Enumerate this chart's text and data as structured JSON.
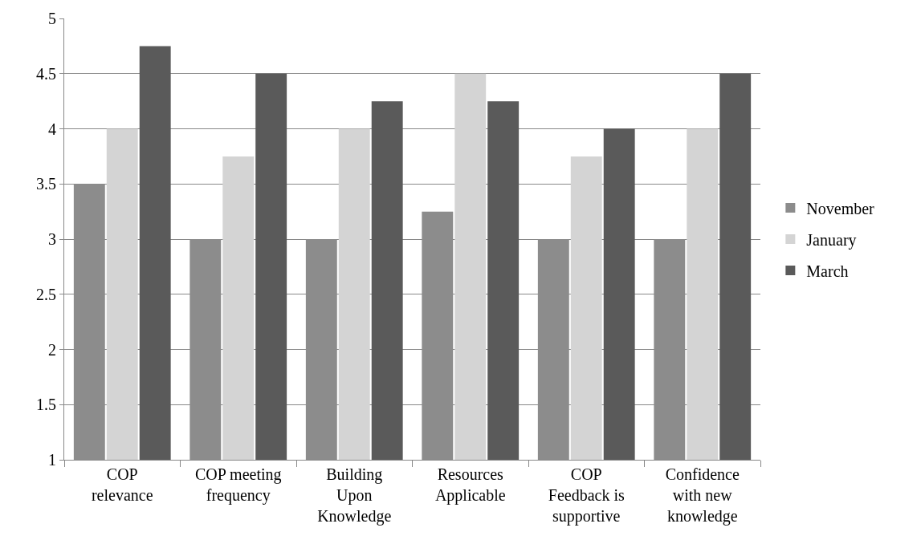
{
  "chart_data": {
    "type": "bar",
    "categories": [
      "COP relevance",
      "COP meeting frequency",
      "Building Upon Knowledge",
      "Resources Applicable",
      "COP Feedback is supportive",
      "Confidence with new knowledge"
    ],
    "series": [
      {
        "name": "November",
        "color": "#8c8c8c",
        "values": [
          3.5,
          3,
          3,
          3.25,
          3,
          3
        ]
      },
      {
        "name": "January",
        "color": "#d4d4d4",
        "values": [
          4,
          3.75,
          4,
          4.5,
          3.75,
          4
        ]
      },
      {
        "name": "March",
        "color": "#5a5a5a",
        "values": [
          4.75,
          4.5,
          4.25,
          4.25,
          4,
          4.5
        ]
      }
    ],
    "ylim": [
      1,
      5
    ],
    "yticks": [
      1,
      1.5,
      2,
      2.5,
      3,
      3.5,
      4,
      4.5,
      5
    ],
    "grid": "y",
    "legend": "right"
  }
}
